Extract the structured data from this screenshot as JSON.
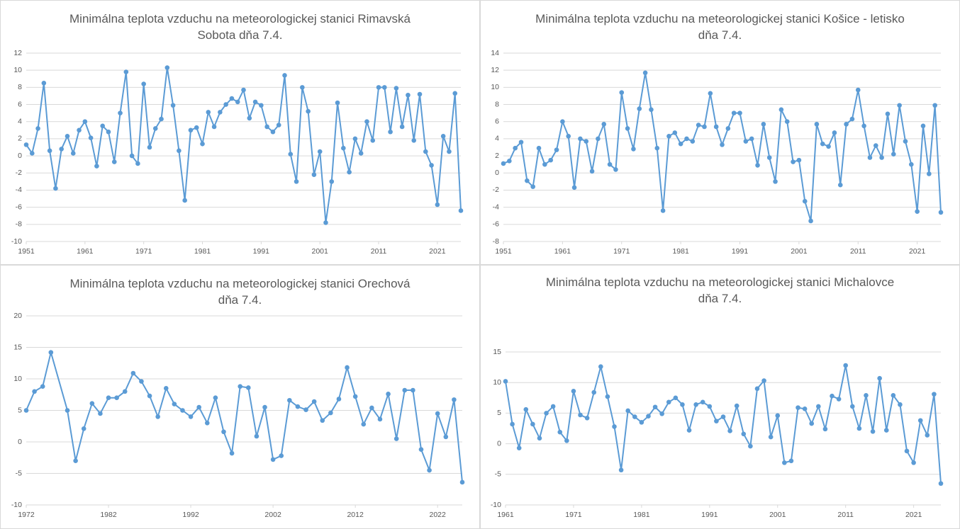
{
  "chart_data": [
    {
      "type": "line",
      "title": "Minimálna teplota vzduchu na meteorologickej stanici Rimavská\nSobota dňa 7.4.",
      "color": "#5b9bd5",
      "grid": true,
      "x": [
        1951,
        1952,
        1953,
        1954,
        1955,
        1956,
        1957,
        1958,
        1959,
        1960,
        1961,
        1962,
        1963,
        1964,
        1965,
        1966,
        1967,
        1968,
        1969,
        1970,
        1971,
        1972,
        1973,
        1974,
        1975,
        1976,
        1977,
        1978,
        1979,
        1980,
        1981,
        1982,
        1983,
        1984,
        1985,
        1986,
        1987,
        1988,
        1989,
        1990,
        1991,
        1992,
        1993,
        1994,
        1995,
        1996,
        1997,
        1998,
        1999,
        2000,
        2001,
        2002,
        2003,
        2004,
        2005,
        2006,
        2007,
        2008,
        2009,
        2010,
        2011,
        2012,
        2013,
        2014,
        2015,
        2016,
        2017,
        2018,
        2019,
        2020,
        2021,
        2022,
        2023,
        2024,
        2025
      ],
      "values": [
        1.3,
        0.3,
        3.2,
        8.5,
        0.6,
        -3.8,
        0.8,
        2.3,
        0.3,
        3.0,
        4.0,
        2.1,
        -1.2,
        3.5,
        2.8,
        -0.7,
        5.0,
        9.8,
        0.0,
        -0.9,
        8.4,
        1.0,
        3.2,
        4.3,
        10.3,
        5.9,
        0.6,
        -5.2,
        3.0,
        3.3,
        1.4,
        5.1,
        3.4,
        5.1,
        6.0,
        6.7,
        6.3,
        7.7,
        4.4,
        6.3,
        5.9,
        3.4,
        2.8,
        3.6,
        9.4,
        0.2,
        -3.0,
        8.0,
        5.2,
        -2.2,
        0.5,
        -7.8,
        -3.0,
        6.2,
        0.9,
        -1.9,
        2.0,
        0.3,
        4.0,
        1.8,
        8.0,
        8.0,
        2.8,
        7.9,
        3.4,
        7.1,
        1.8,
        7.2,
        0.5,
        -1.1,
        -5.7,
        2.3,
        0.5,
        7.3,
        -6.4
      ],
      "xlim": [
        1951,
        2025
      ],
      "xticks": [
        1951,
        1961,
        1971,
        1981,
        1991,
        2001,
        2011,
        2021
      ],
      "ylim": [
        -10,
        12
      ],
      "yticks": [
        -10,
        -8,
        -6,
        -4,
        -2,
        0,
        2,
        4,
        6,
        8,
        10,
        12
      ]
    },
    {
      "type": "line",
      "title": "Minimálna teplota vzduchu na meteorologickej stanici Košice - letisko\ndňa 7.4.",
      "color": "#5b9bd5",
      "grid": true,
      "x": [
        1951,
        1952,
        1953,
        1954,
        1955,
        1956,
        1957,
        1958,
        1959,
        1960,
        1961,
        1962,
        1963,
        1964,
        1965,
        1966,
        1967,
        1968,
        1969,
        1970,
        1971,
        1972,
        1973,
        1974,
        1975,
        1976,
        1977,
        1978,
        1979,
        1980,
        1981,
        1982,
        1983,
        1984,
        1985,
        1986,
        1987,
        1988,
        1989,
        1990,
        1991,
        1992,
        1993,
        1994,
        1995,
        1996,
        1997,
        1998,
        1999,
        2000,
        2001,
        2002,
        2003,
        2004,
        2005,
        2006,
        2007,
        2008,
        2009,
        2010,
        2011,
        2012,
        2013,
        2014,
        2015,
        2016,
        2017,
        2018,
        2019,
        2020,
        2021,
        2022,
        2023,
        2024,
        2025
      ],
      "values": [
        1.1,
        1.4,
        2.9,
        3.6,
        -0.9,
        -1.6,
        2.9,
        1.0,
        1.5,
        2.7,
        6.0,
        4.3,
        -1.7,
        4.0,
        3.7,
        0.2,
        4.0,
        5.7,
        1.0,
        0.4,
        9.4,
        5.2,
        2.8,
        7.5,
        11.7,
        7.4,
        2.9,
        -4.4,
        4.3,
        4.7,
        3.4,
        4.0,
        3.7,
        5.6,
        5.4,
        9.3,
        5.4,
        3.3,
        5.2,
        7.0,
        7.0,
        3.7,
        4.0,
        0.9,
        5.7,
        1.8,
        -1.0,
        7.4,
        6.0,
        1.3,
        1.5,
        -3.3,
        -5.6,
        5.7,
        3.4,
        3.1,
        4.7,
        -1.4,
        5.7,
        6.3,
        9.7,
        5.5,
        1.8,
        3.2,
        1.8,
        6.9,
        2.2,
        7.9,
        3.7,
        1.0,
        -4.5,
        5.5,
        -0.1,
        7.9,
        -4.6
      ],
      "xlim": [
        1951,
        2025
      ],
      "xticks": [
        1951,
        1961,
        1971,
        1981,
        1991,
        2001,
        2011,
        2021
      ],
      "ylim": [
        -8,
        14
      ],
      "yticks": [
        -8,
        -6,
        -4,
        -2,
        0,
        2,
        4,
        6,
        8,
        10,
        12,
        14
      ]
    },
    {
      "type": "line",
      "title": "Minimálna teplota vzduchu na meteorologickej stanici Orechová\ndňa 7.4.",
      "color": "#5b9bd5",
      "grid": true,
      "x": [
        1972,
        1973,
        1974,
        1975,
        1977,
        1978,
        1979,
        1980,
        1981,
        1982,
        1983,
        1984,
        1985,
        1986,
        1987,
        1988,
        1989,
        1990,
        1991,
        1992,
        1993,
        1994,
        1995,
        1996,
        1997,
        1998,
        1999,
        2000,
        2001,
        2002,
        2003,
        2004,
        2005,
        2006,
        2007,
        2008,
        2009,
        2010,
        2011,
        2012,
        2013,
        2014,
        2015,
        2016,
        2017,
        2018,
        2019,
        2020,
        2021,
        2022,
        2023,
        2024,
        2025
      ],
      "values": [
        5.0,
        8.0,
        8.8,
        14.2,
        5.0,
        -3.0,
        2.1,
        6.1,
        4.5,
        7.0,
        7.0,
        8.0,
        10.9,
        9.6,
        7.3,
        4.0,
        8.5,
        6.0,
        5.0,
        4.0,
        5.5,
        3.0,
        7.0,
        1.6,
        -1.8,
        8.8,
        8.6,
        0.9,
        5.5,
        -2.8,
        -2.2,
        6.6,
        5.6,
        5.1,
        6.4,
        3.4,
        4.6,
        6.8,
        11.8,
        7.2,
        2.8,
        5.4,
        3.6,
        7.6,
        0.5,
        8.2,
        8.2,
        -1.2,
        -4.5,
        4.5,
        0.8,
        6.7,
        -6.4
      ],
      "xlim": [
        1972,
        2025
      ],
      "xticks": [
        1972,
        1982,
        1992,
        2002,
        2012,
        2022
      ],
      "ylim": [
        -10,
        20
      ],
      "yticks": [
        -10,
        -5,
        0,
        5,
        10,
        15,
        20
      ]
    },
    {
      "type": "line",
      "title": "Minimálna teplota vzduchu na meteorologickej stanici Michalovce\ndňa 7.4.",
      "color": "#5b9bd5",
      "grid": true,
      "x": [
        1961,
        1962,
        1963,
        1964,
        1965,
        1966,
        1967,
        1968,
        1969,
        1970,
        1971,
        1972,
        1973,
        1974,
        1975,
        1976,
        1977,
        1978,
        1979,
        1980,
        1981,
        1982,
        1983,
        1984,
        1985,
        1986,
        1987,
        1988,
        1989,
        1990,
        1991,
        1992,
        1993,
        1994,
        1995,
        1996,
        1997,
        1998,
        1999,
        2000,
        2001,
        2002,
        2003,
        2004,
        2005,
        2006,
        2007,
        2008,
        2009,
        2010,
        2011,
        2012,
        2013,
        2014,
        2015,
        2016,
        2017,
        2018,
        2019,
        2020,
        2021,
        2022,
        2023,
        2024,
        2025
      ],
      "values": [
        10.2,
        3.2,
        -0.7,
        5.6,
        3.2,
        0.9,
        5.0,
        6.1,
        1.9,
        0.5,
        8.6,
        4.7,
        4.2,
        8.4,
        12.6,
        7.7,
        2.8,
        -4.3,
        5.4,
        4.4,
        3.5,
        4.5,
        6.0,
        4.9,
        6.8,
        7.5,
        6.4,
        2.2,
        6.4,
        6.8,
        6.1,
        3.7,
        4.4,
        2.1,
        6.2,
        1.6,
        -0.4,
        9.0,
        10.3,
        1.1,
        4.6,
        -3.1,
        -2.8,
        5.9,
        5.7,
        3.3,
        6.1,
        2.4,
        7.8,
        7.3,
        12.8,
        6.1,
        2.5,
        7.9,
        2.0,
        10.7,
        2.2,
        7.9,
        6.4,
        -1.2,
        -3.1,
        3.8,
        1.4,
        8.1,
        -6.5
      ],
      "xlim": [
        1961,
        2025
      ],
      "xticks": [
        1961,
        1971,
        1981,
        1991,
        2001,
        2011,
        2021
      ],
      "ylim": [
        -10,
        15
      ],
      "yticks": [
        -10,
        -5,
        0,
        5,
        10,
        15
      ]
    }
  ]
}
